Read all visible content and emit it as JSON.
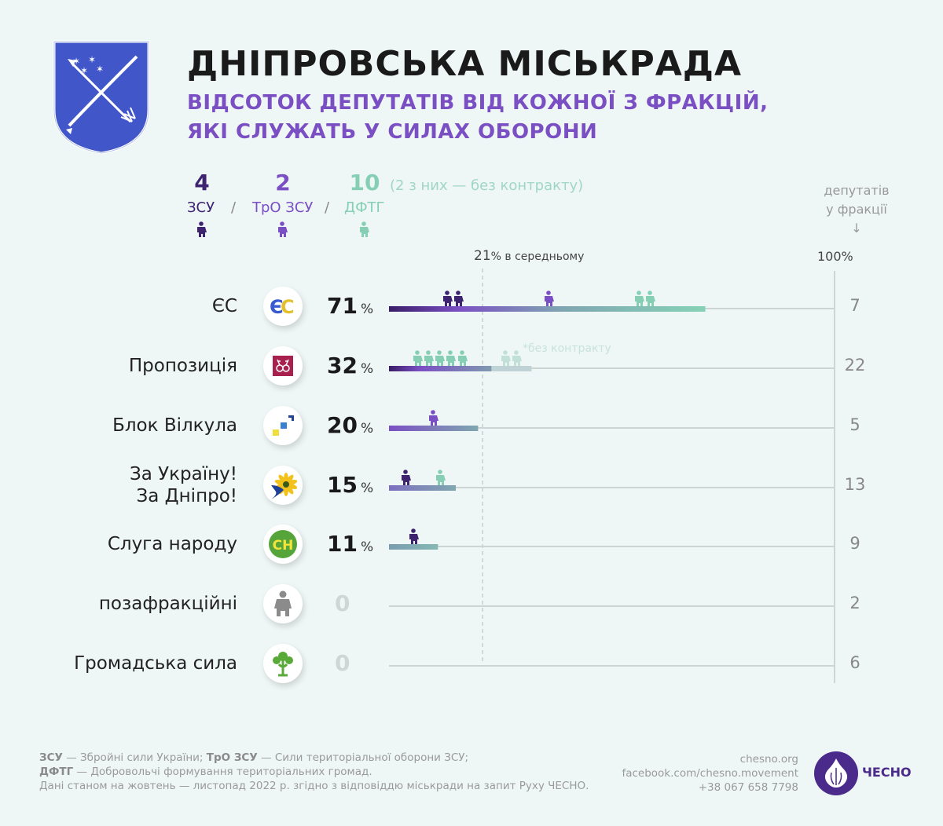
{
  "header": {
    "title": "ДНІПРОВСЬКА МІСЬКРАДА",
    "subtitle_line1": "ВІДСОТОК ДЕПУТАТІВ ВІД КОЖНОЇ З ФРАКЦІЙ,",
    "subtitle_line2": "ЯКІ СЛУЖАТЬ У СИЛАХ ОБОРОНИ"
  },
  "legend": {
    "zsu": {
      "count": "4",
      "label": "ЗСУ",
      "color": "#3d2370"
    },
    "tro": {
      "count": "2",
      "label": "ТрО ЗСУ",
      "color": "#7b4fc4"
    },
    "dftg": {
      "count": "10",
      "label": "ДФТГ",
      "color": "#86cfb5",
      "note": "(2 з них — без контракту)"
    },
    "slash": "/",
    "faded_color": "#c3e0d8"
  },
  "chart_data": {
    "type": "bar",
    "xlim": [
      0,
      100
    ],
    "average_label_value": "21",
    "average_label_text": "% в середньому",
    "max_label": "100%",
    "count_header_line1": "депутатів",
    "count_header_line2": "у фракції",
    "count_header_arrow": "↓",
    "no_contract_note": "*без контракту",
    "average": 21,
    "rows": [
      {
        "name": "ЄС",
        "logo": "es-logo",
        "value": 71,
        "value_label": "71",
        "deputies": "7",
        "figures": [
          "zsu",
          "zsu",
          "tro",
          "dftg",
          "dftg"
        ]
      },
      {
        "name": "Пропозиція",
        "logo": "propozytsiia-logo",
        "value": 32,
        "value_label": "32",
        "deputies": "22",
        "figures": [
          "dftg",
          "dftg",
          "dftg",
          "dftg",
          "dftg",
          "dftg-no-contract",
          "dftg-no-contract"
        ]
      },
      {
        "name": "Блок Вілкула",
        "logo": "blok-vilkula-logo",
        "value": 20,
        "value_label": "20",
        "deputies": "5",
        "figures": [
          "tro"
        ]
      },
      {
        "name": "За Україну!\nЗа Дніпро!",
        "logo": "za-ukrainu-logo",
        "value": 15,
        "value_label": "15",
        "deputies": "13",
        "figures": [
          "zsu",
          "dftg"
        ]
      },
      {
        "name": "Слуга народу",
        "logo": "sluha-narodu-logo",
        "value": 11,
        "value_label": "11",
        "deputies": "9",
        "figures": [
          "zsu"
        ]
      },
      {
        "name": "позафракційні",
        "logo": "person-icon",
        "value": 0,
        "value_label": "0",
        "deputies": "2",
        "figures": []
      },
      {
        "name": "Громадська сила",
        "logo": "hromadska-syla-logo",
        "value": 0,
        "value_label": "0",
        "deputies": "6",
        "figures": []
      }
    ],
    "pct_sign": "%",
    "sluha_logo_text": "СН"
  },
  "footer": {
    "line1_b1": "ЗСУ",
    "line1_t1": " — Збройні сили України; ",
    "line1_b2": "ТрО ЗСУ",
    "line1_t2": " — Сили територіальної оборони ЗСУ;",
    "line2_b": "ДФТГ",
    "line2_t": " — Добровольчі формування територіальних громад.",
    "line3": "Дані станом на жовтень — листопад 2022 р. згідно з відповіддю міськради на запит Руху ЧЕСНО.",
    "site": "chesno.org",
    "facebook": "facebook.com/chesno.movement",
    "phone": "+38 067 658 7798",
    "brand": "ЧЕСНО"
  }
}
